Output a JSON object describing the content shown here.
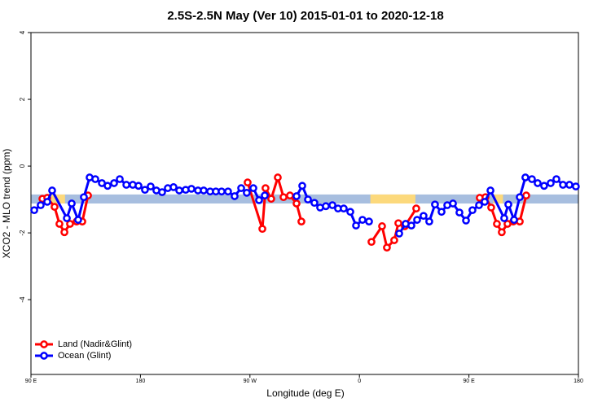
{
  "chart_data": {
    "type": "line",
    "title": "2.5S-2.5N May (Ver 10)   2015-01-01 to 2020-12-18",
    "x_label": "Longitude (deg E)",
    "y_label": "XCO2 - MLO trend (ppm)",
    "xlim": [
      90,
      540
    ],
    "xticks": [
      {
        "value": 90,
        "label": "90 E"
      },
      180,
      {
        "value": 270,
        "label": "90 W"
      },
      {
        "value": 360,
        "label": "0"
      },
      {
        "value": 450,
        "label": "90 E"
      },
      {
        "value": 540,
        "label": "180"
      }
    ],
    "ylim": [
      -6.24,
      4
    ],
    "yticks": [
      -4,
      -2,
      0,
      2,
      4
    ],
    "legend": "bottom-left",
    "band": {
      "lo": -1.12,
      "hi": -0.85,
      "color": "#a7bedf",
      "land_color": "#fcd97c",
      "land_spans": [
        [
          104,
          118
        ],
        [
          369,
          406
        ],
        [
          470,
          478
        ]
      ]
    },
    "series": [
      {
        "name": "Land (Nadir&Glint)",
        "color": "#ff0000",
        "x": [
          99.4,
          103.4,
          109.4,
          113.4,
          117.5,
          122.1,
          127.5,
          132.2,
          136.9,
          null,
          268.1,
          280.2,
          282.8,
          287.5,
          292.9,
          297.6,
          302.9,
          308.3,
          312.3,
          null,
          369.9,
          378.6,
          382.6,
          388.6,
          392.0,
          397.3,
          406.7,
          null,
          458.9,
          463.6,
          468.3,
          473.0,
          477.0,
          481.7,
          486.4,
          491.8,
          497.1
        ],
        "values": [
          -0.98,
          -0.95,
          -1.22,
          -1.73,
          -1.98,
          -1.73,
          -1.66,
          -1.66,
          -0.88,
          null,
          -0.49,
          -1.88,
          -0.66,
          -0.98,
          -0.34,
          -0.93,
          -0.88,
          -1.12,
          -1.66,
          null,
          -2.27,
          -1.8,
          -2.44,
          -2.22,
          -1.71,
          -1.8,
          -1.27,
          null,
          -0.95,
          -0.93,
          -1.24,
          -1.73,
          -1.98,
          -1.73,
          -1.66,
          -1.66,
          -0.88
        ]
      },
      {
        "name": "Ocean (Glint)",
        "color": "#0000ff",
        "x": [
          92.7,
          98.0,
          103.4,
          107.4,
          119.5,
          123.5,
          128.8,
          133.5,
          138.2,
          142.9,
          148.3,
          153.0,
          158.3,
          163.0,
          168.4,
          173.7,
          178.4,
          183.7,
          188.4,
          193.1,
          197.8,
          202.5,
          207.2,
          211.9,
          217.2,
          221.9,
          227.3,
          232.0,
          237.3,
          242.0,
          246.7,
          252.0,
          257.4,
          262.8,
          267.4,
          272.8,
          277.5,
          282.2,
          null,
          308.3,
          313.0,
          317.7,
          323.0,
          327.7,
          332.4,
          337.8,
          342.4,
          347.1,
          352.5,
          357.2,
          362.5,
          367.9,
          null,
          392.7,
          398.0,
          402.7,
          407.4,
          412.7,
          417.4,
          422.1,
          427.5,
          432.2,
          436.9,
          442.2,
          447.6,
          452.9,
          458.3,
          463.0,
          467.7,
          479.0,
          482.4,
          487.1,
          491.8,
          496.4,
          501.8,
          506.5,
          511.8,
          517.2,
          521.9,
          527.3,
          532.6,
          537.9
        ],
        "values": [
          -1.32,
          -1.17,
          -1.07,
          -0.73,
          -1.56,
          -1.12,
          -1.61,
          -0.93,
          -0.34,
          -0.39,
          -0.51,
          -0.59,
          -0.51,
          -0.39,
          -0.56,
          -0.56,
          -0.59,
          -0.71,
          -0.61,
          -0.73,
          -0.78,
          -0.66,
          -0.63,
          -0.73,
          -0.71,
          -0.68,
          -0.73,
          -0.73,
          -0.76,
          -0.76,
          -0.76,
          -0.76,
          -0.9,
          -0.66,
          -0.8,
          -0.66,
          -1.02,
          -0.88,
          null,
          -0.9,
          -0.59,
          -1.0,
          -1.1,
          -1.24,
          -1.2,
          -1.17,
          -1.27,
          -1.27,
          -1.37,
          -1.78,
          -1.61,
          -1.66,
          null,
          -2.02,
          -1.73,
          -1.78,
          -1.61,
          -1.49,
          -1.66,
          -1.15,
          -1.37,
          -1.17,
          -1.12,
          -1.39,
          -1.63,
          -1.32,
          -1.17,
          -1.07,
          -0.73,
          -1.56,
          -1.15,
          -1.61,
          -0.93,
          -0.34,
          -0.39,
          -0.51,
          -0.59,
          -0.51,
          -0.39,
          -0.56,
          -0.56,
          -0.61
        ]
      }
    ]
  }
}
